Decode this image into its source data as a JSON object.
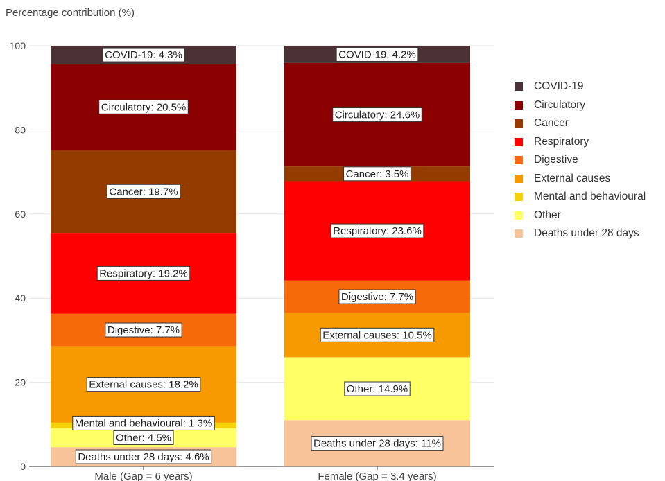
{
  "chart_data": {
    "type": "stacked-bar",
    "ylabel": "Percentage contribution (%)",
    "ylim": [
      0,
      100
    ],
    "yticks": [
      0,
      20,
      40,
      60,
      80,
      100
    ],
    "grid": true,
    "legend_position": "right",
    "categories": [
      "Male (Gap = 6 years)",
      "Female (Gap = 3.4 years)"
    ],
    "series": [
      {
        "name": "Deaths under 28 days",
        "color": "#f9c39a",
        "values": [
          4.6,
          11
        ],
        "labels": [
          "Deaths under 28 days: 4.6%",
          "Deaths under 28 days: 11%"
        ]
      },
      {
        "name": "Other",
        "color": "#ffff66",
        "values": [
          4.5,
          14.9
        ],
        "labels": [
          "Other: 4.5%",
          "Other: 14.9%"
        ]
      },
      {
        "name": "Mental and behavioural",
        "color": "#f5d10a",
        "values": [
          1.3,
          0.1
        ],
        "labels": [
          "Mental and behavioural: 1.3%",
          ""
        ]
      },
      {
        "name": "External causes",
        "color": "#f79a00",
        "values": [
          18.2,
          10.5
        ],
        "labels": [
          "External causes: 18.2%",
          "External causes: 10.5%"
        ]
      },
      {
        "name": "Digestive",
        "color": "#f76a0a",
        "values": [
          7.7,
          7.7
        ],
        "labels": [
          "Digestive: 7.7%",
          "Digestive: 7.7%"
        ]
      },
      {
        "name": "Respiratory",
        "color": "#ff0000",
        "values": [
          19.2,
          23.6
        ],
        "labels": [
          "Respiratory: 19.2%",
          "Respiratory: 23.6%"
        ]
      },
      {
        "name": "Cancer",
        "color": "#943c00",
        "values": [
          19.7,
          3.5
        ],
        "labels": [
          "Cancer: 19.7%",
          "Cancer: 3.5%"
        ]
      },
      {
        "name": "Circulatory",
        "color": "#8b0000",
        "values": [
          20.5,
          24.6
        ],
        "labels": [
          "Circulatory: 20.5%",
          "Circulatory: 24.6%"
        ]
      },
      {
        "name": "COVID-19",
        "color": "#4a3236",
        "values": [
          4.3,
          4.2
        ],
        "labels": [
          "COVID-19: 4.3%",
          "COVID-19: 4.2%"
        ]
      }
    ],
    "legend_order": [
      "COVID-19",
      "Circulatory",
      "Cancer",
      "Respiratory",
      "Digestive",
      "External causes",
      "Mental and behavioural",
      "Other",
      "Deaths under 28 days"
    ]
  }
}
